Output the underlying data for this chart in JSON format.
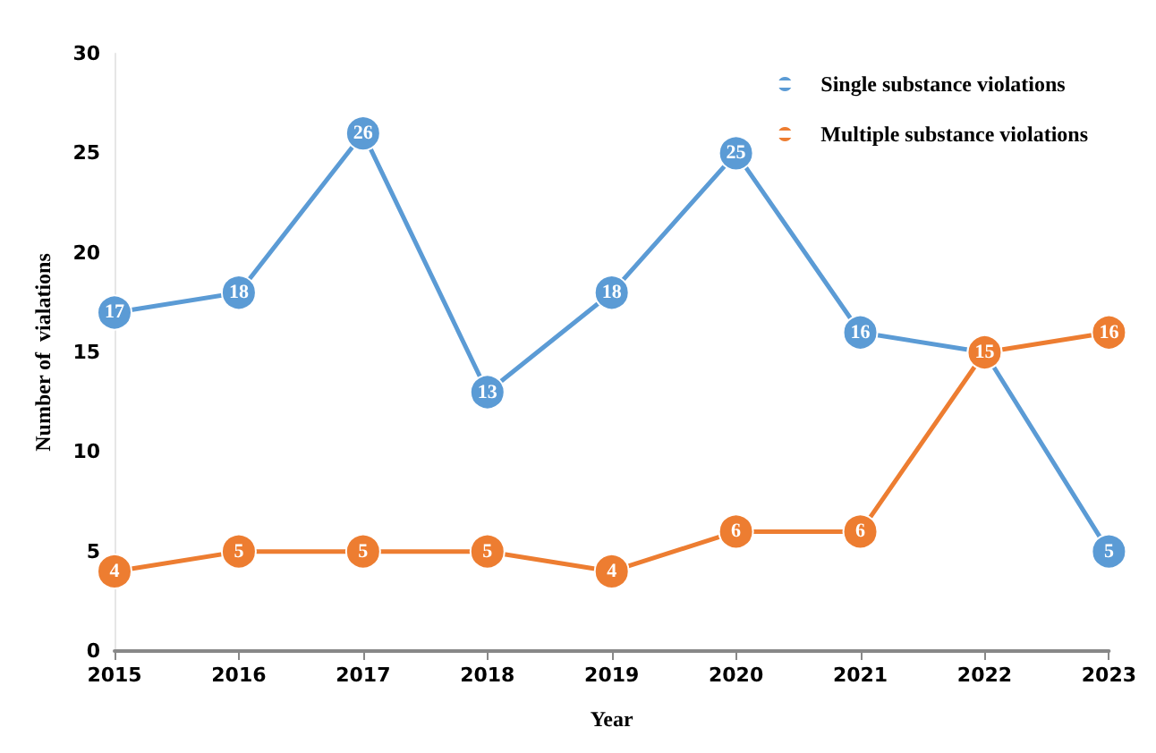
{
  "chart_data": {
    "type": "line",
    "xlabel": "Year",
    "ylabel": "Number of  vialations",
    "categories": [
      "2015",
      "2016",
      "2017",
      "2018",
      "2019",
      "2020",
      "2021",
      "2022",
      "2023"
    ],
    "series": [
      {
        "name": "Single substance violations",
        "color": "#5b9bd5",
        "values": [
          17,
          18,
          26,
          13,
          18,
          25,
          16,
          15,
          5
        ],
        "value_labels": [
          "17",
          "18",
          "26",
          "13",
          "18",
          "25",
          "16",
          null,
          "5"
        ]
      },
      {
        "name": "Multiple substance violations",
        "color": "#ed7d31",
        "values": [
          4,
          5,
          5,
          5,
          4,
          6,
          6,
          15,
          16
        ],
        "value_labels": [
          "4",
          "5",
          "5",
          "5",
          "4",
          "6",
          "6",
          "15",
          "16"
        ]
      }
    ],
    "ylim": [
      0,
      30
    ],
    "yticks": [
      0,
      5,
      10,
      15,
      20,
      25,
      30
    ],
    "grid": false,
    "legend": "top right",
    "marker": "circle",
    "line_style": "solid"
  }
}
